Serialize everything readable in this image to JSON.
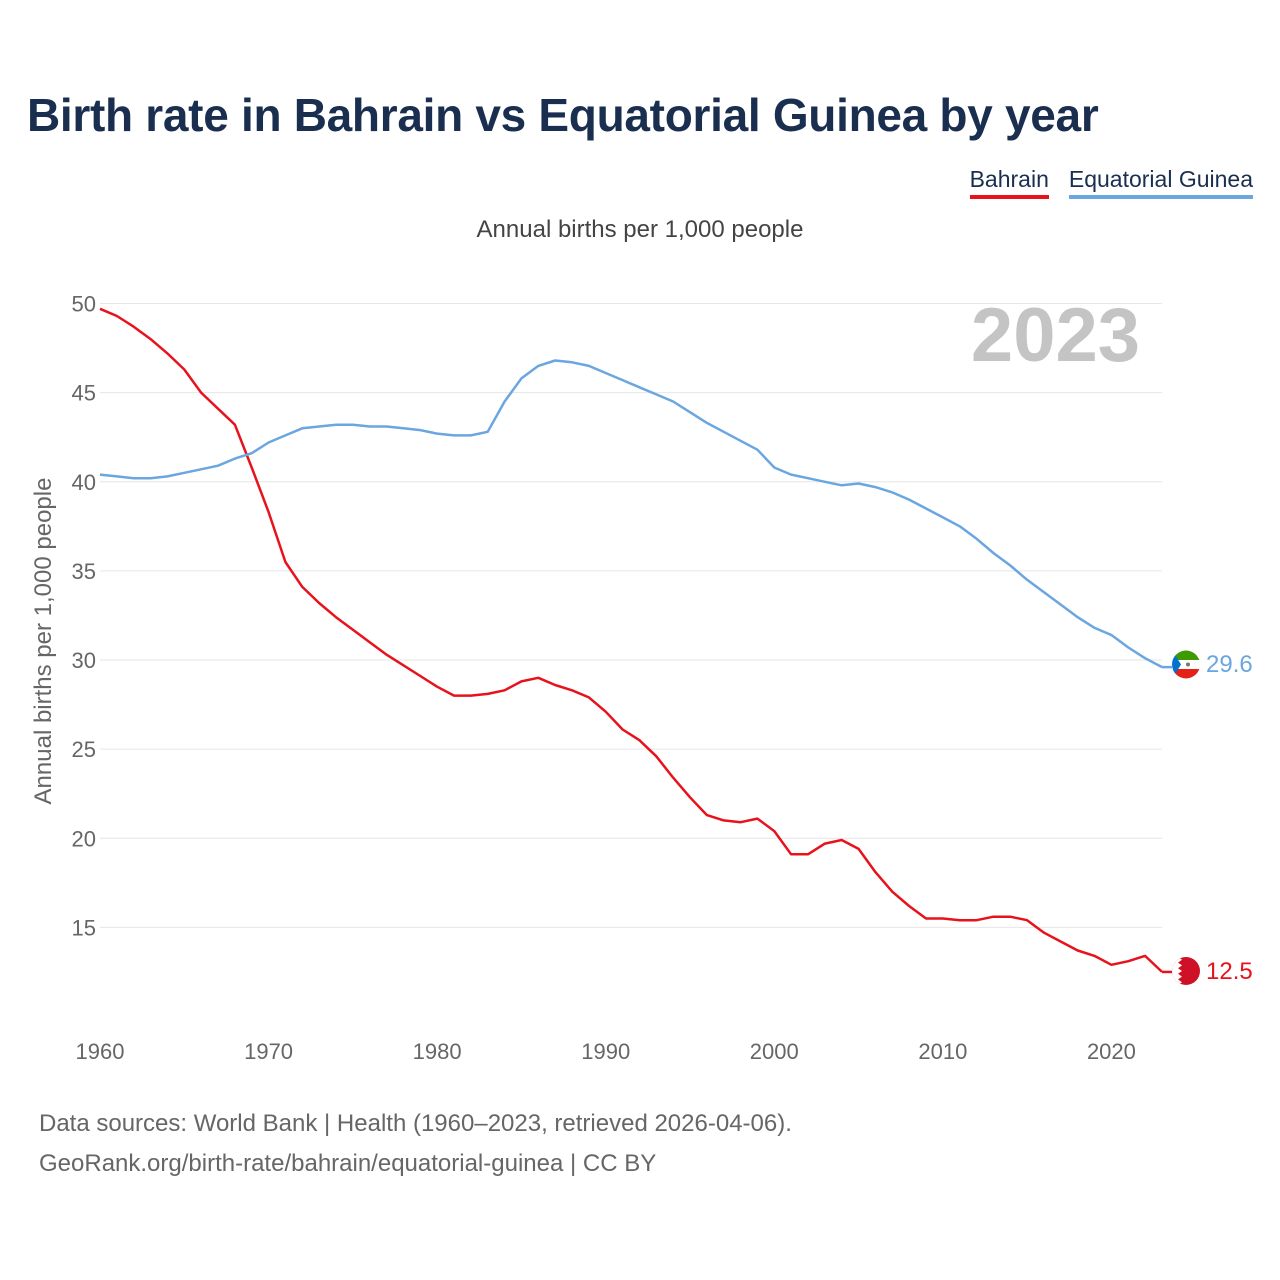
{
  "title": "Birth rate in Bahrain vs Equatorial Guinea by year",
  "subtitle": "Annual births per 1,000 people",
  "legend": [
    {
      "name": "Bahrain",
      "color": "#e8121c"
    },
    {
      "name": "Equatorial Guinea",
      "color": "#6aa6e0"
    }
  ],
  "footer": {
    "line1": "Data sources: World Bank | Health (1960–2023, retrieved 2026-04-06).",
    "line2": "GeoRank.org/birth-rate/bahrain/equatorial-guinea | CC BY"
  },
  "chart_data": {
    "type": "line",
    "title": "Birth rate in Bahrain vs Equatorial Guinea by year",
    "xlabel": "",
    "ylabel": "Annual births per 1,000 people",
    "xlim": [
      1960,
      2023
    ],
    "ylim": [
      10,
      50
    ],
    "xticks": [
      1960,
      1970,
      1980,
      1990,
      2000,
      2010,
      2020
    ],
    "yticks": [
      15,
      20,
      25,
      30,
      35,
      40,
      45,
      50
    ],
    "year_label": "2023",
    "grid": true,
    "x": [
      1960,
      1961,
      1962,
      1963,
      1964,
      1965,
      1966,
      1967,
      1968,
      1969,
      1970,
      1971,
      1972,
      1973,
      1974,
      1975,
      1976,
      1977,
      1978,
      1979,
      1980,
      1981,
      1982,
      1983,
      1984,
      1985,
      1986,
      1987,
      1988,
      1989,
      1990,
      1991,
      1992,
      1993,
      1994,
      1995,
      1996,
      1997,
      1998,
      1999,
      2000,
      2001,
      2002,
      2003,
      2004,
      2005,
      2006,
      2007,
      2008,
      2009,
      2010,
      2011,
      2012,
      2013,
      2014,
      2015,
      2016,
      2017,
      2018,
      2019,
      2020,
      2021,
      2022,
      2023
    ],
    "series": [
      {
        "name": "Bahrain",
        "color": "#e8121c",
        "end_label": "12.5",
        "values": [
          49.7,
          49.3,
          48.7,
          48.0,
          47.2,
          46.3,
          45.0,
          44.1,
          43.2,
          40.8,
          38.3,
          35.5,
          34.1,
          33.2,
          32.4,
          31.7,
          31.0,
          30.3,
          29.7,
          29.1,
          28.5,
          28.0,
          28.0,
          28.1,
          28.3,
          28.8,
          29.0,
          28.6,
          28.3,
          27.9,
          27.1,
          26.1,
          25.5,
          24.6,
          23.4,
          22.3,
          21.3,
          21.0,
          20.9,
          21.1,
          20.4,
          19.1,
          19.1,
          19.7,
          19.9,
          19.4,
          18.1,
          17.0,
          16.2,
          15.5,
          15.5,
          15.4,
          15.4,
          15.6,
          15.6,
          15.4,
          14.7,
          14.2,
          13.7,
          13.4,
          12.9,
          13.1,
          13.4,
          12.5
        ]
      },
      {
        "name": "Equatorial Guinea",
        "color": "#6aa6e0",
        "end_label": "29.6",
        "values": [
          40.4,
          40.3,
          40.2,
          40.2,
          40.3,
          40.5,
          40.7,
          40.9,
          41.3,
          41.6,
          42.2,
          42.6,
          43.0,
          43.1,
          43.2,
          43.2,
          43.1,
          43.1,
          43.0,
          42.9,
          42.7,
          42.6,
          42.6,
          42.8,
          44.5,
          45.8,
          46.5,
          46.8,
          46.7,
          46.5,
          46.1,
          45.7,
          45.3,
          44.9,
          44.5,
          43.9,
          43.3,
          42.8,
          42.3,
          41.8,
          40.8,
          40.4,
          40.2,
          40.0,
          39.8,
          39.9,
          39.7,
          39.4,
          39.0,
          38.5,
          38.0,
          37.5,
          36.8,
          36.0,
          35.3,
          34.5,
          33.8,
          33.1,
          32.4,
          31.8,
          31.4,
          30.7,
          30.1,
          29.6
        ]
      }
    ]
  }
}
